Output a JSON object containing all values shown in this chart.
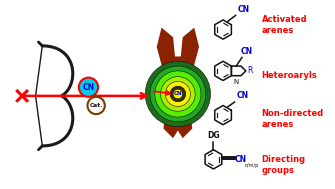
{
  "bg_color": "#ffffff",
  "bow_color": "#1a1a1a",
  "arrow_color": "#ff0000",
  "cn_circle_fill": "#00ccee",
  "cn_circle_edge": "#ff0000",
  "cat_circle_edge": "#7a3a00",
  "green_dark": "#1a6e1a",
  "green_bright": "#44dd00",
  "yellow": "#ffee00",
  "yellow_dark": "#bbaa00",
  "brown": "#8B2200",
  "label_red": "#ff0000",
  "label_blue": "#0000cc",
  "label_black": "#111111",
  "label_r_blue": "#0000cc",
  "text_activated": "Activated\narenes",
  "text_heteroaryls": "Heteroaryls",
  "text_nondirected": "Non-directed\narenes",
  "text_directing": "Directing\ngroups"
}
